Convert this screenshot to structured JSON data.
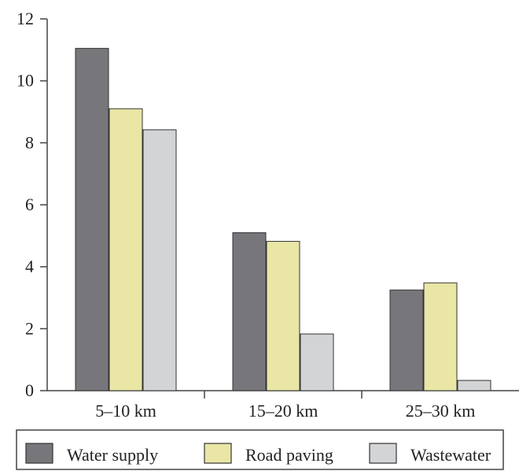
{
  "chart_data": {
    "type": "bar",
    "title": "",
    "xlabel": "",
    "ylabel": "",
    "ylim": [
      0,
      12
    ],
    "yticks": [
      0,
      2,
      4,
      6,
      8,
      10,
      12
    ],
    "categories": [
      "5–10 km",
      "15–20 km",
      "25–30 km"
    ],
    "series": [
      {
        "name": "Water supply",
        "color": "#77777b",
        "values": [
          11.05,
          5.1,
          3.25
        ]
      },
      {
        "name": "Road paving",
        "color": "#e9e6a6",
        "values": [
          9.1,
          4.82,
          3.48
        ]
      },
      {
        "name": "Wastewater",
        "color": "#d3d4d6",
        "values": [
          8.42,
          1.83,
          0.33
        ]
      }
    ],
    "grid": false,
    "legend_position": "bottom"
  }
}
